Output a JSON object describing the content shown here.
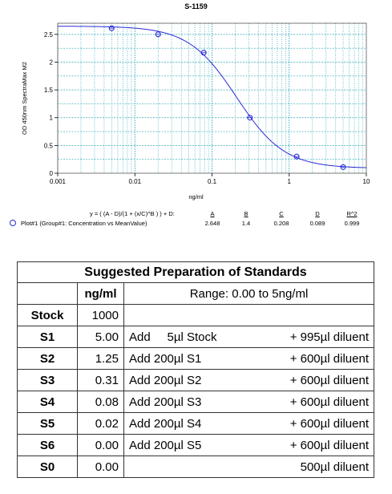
{
  "chart_data": {
    "type": "scatter",
    "title": "S-1159",
    "xlabel": "ng/ml",
    "ylabel": "OD 450nm SpectraMax M2",
    "xscale": "log",
    "xlim": [
      0.001,
      10
    ],
    "ylim": [
      0,
      2.7
    ],
    "x_ticks": [
      "0.001",
      "0.01",
      "0.1",
      "1",
      "10"
    ],
    "y_ticks": [
      "0",
      "0.5",
      "1",
      "1.5",
      "2",
      "2.5"
    ],
    "grid": true,
    "series": [
      {
        "name": "Plot#1 (Group#1: Concentration vs MeanValue)",
        "x": [
          0.005,
          0.02,
          0.078,
          0.31,
          1.25,
          5.0
        ],
        "y": [
          2.61,
          2.5,
          2.17,
          1.0,
          0.3,
          0.11
        ]
      }
    ],
    "fit": {
      "equation": "y = ( (A - D)/(1 + (x/C)^B ) ) + D:",
      "params": [
        {
          "name": "A",
          "value": "2.648"
        },
        {
          "name": "B",
          "value": "1.4"
        },
        {
          "name": "C",
          "value": "0.208"
        },
        {
          "name": "D",
          "value": "0.089"
        },
        {
          "name": "R^2",
          "value": "0.999"
        }
      ],
      "A": 2.648,
      "B": 1.4,
      "C": 0.208,
      "D": 0.089
    },
    "colors": {
      "curve": "#2b2bd6",
      "grid": "#2aa7b8",
      "marker": "#2b2bd6"
    }
  },
  "table": {
    "title": "Suggested Preparation of Standards",
    "header_conc": "ng/ml",
    "header_range": "Range: 0.00 to 5ng/ml",
    "rows": [
      {
        "label": "Stock",
        "conc": "1000",
        "left": "",
        "right": ""
      },
      {
        "label": "S1",
        "conc": "5.00",
        "left": "Add     5µl Stock",
        "right": "+ 995µl diluent"
      },
      {
        "label": "S2",
        "conc": "1.25",
        "left": "Add 200µl S1",
        "right": "+ 600µl diluent"
      },
      {
        "label": "S3",
        "conc": "0.31",
        "left": "Add 200µl S2",
        "right": "+ 600µl diluent"
      },
      {
        "label": "S4",
        "conc": "0.08",
        "left": "Add 200µl S3",
        "right": "+ 600µl diluent"
      },
      {
        "label": "S5",
        "conc": "0.02",
        "left": "Add 200µl S4",
        "right": "+ 600µl diluent"
      },
      {
        "label": "S6",
        "conc": "0.00",
        "left": "Add 200µl S5",
        "right": "+ 600µl diluent"
      },
      {
        "label": "S0",
        "conc": "0.00",
        "left": "",
        "right": "500µl diluent"
      }
    ]
  }
}
